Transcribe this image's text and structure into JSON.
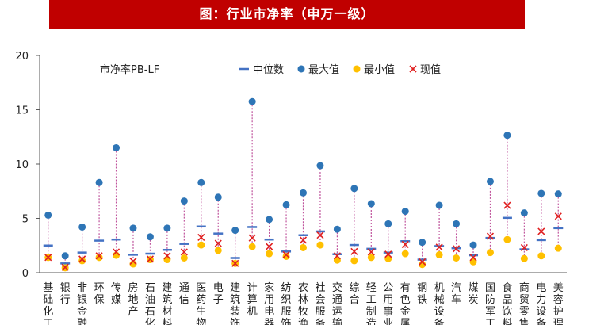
{
  "title": "图：行业市净率（申万一级）",
  "chart_data": {
    "type": "scatter",
    "subtitle": "市净率PB-LF",
    "ylim": [
      0,
      20
    ],
    "yticks": [
      0,
      5,
      10,
      15,
      20
    ],
    "grid": false,
    "legend_position": "top",
    "categories": [
      "基础化工",
      "银行",
      "非银金融",
      "环保",
      "传媒",
      "房地产",
      "石油石化",
      "建筑材料",
      "通信",
      "医药生物",
      "电子",
      "建筑装饰",
      "计算机",
      "家用电器",
      "纺织服饰",
      "农林牧渔",
      "社会服务",
      "交通运输",
      "综合",
      "轻工制造",
      "公用事业",
      "有色金属",
      "钢铁",
      "机械设备",
      "汽车",
      "煤炭",
      "国防军工",
      "食品饮料",
      "商贸零售",
      "电力设备",
      "美容护理"
    ],
    "series": [
      {
        "name": "中位数",
        "color": "#4472c4",
        "marker": "dash",
        "values": [
          2.5,
          0.85,
          1.85,
          2.95,
          3.05,
          1.65,
          1.75,
          2.1,
          2.65,
          4.25,
          3.6,
          1.35,
          4.2,
          3.05,
          1.95,
          3.45,
          3.8,
          1.7,
          2.55,
          2.2,
          1.85,
          2.9,
          1.2,
          2.45,
          2.25,
          1.6,
          3.2,
          5.05,
          2.15,
          3.0,
          4.1
        ]
      },
      {
        "name": "最大值",
        "color": "#2e75b6",
        "marker": "circle",
        "values": [
          5.3,
          1.55,
          4.2,
          8.3,
          11.5,
          4.1,
          3.3,
          4.1,
          6.6,
          8.3,
          6.95,
          3.9,
          15.75,
          4.9,
          6.25,
          7.35,
          9.85,
          4.0,
          7.75,
          6.35,
          4.5,
          5.65,
          2.8,
          6.2,
          4.5,
          2.55,
          8.4,
          12.65,
          5.5,
          7.3,
          7.25
        ]
      },
      {
        "name": "最小值",
        "color": "#ffc000",
        "marker": "circle",
        "values": [
          1.4,
          0.45,
          1.1,
          1.4,
          1.6,
          0.8,
          1.2,
          1.2,
          1.35,
          2.55,
          2.05,
          0.85,
          2.4,
          1.75,
          1.5,
          2.3,
          2.55,
          1.15,
          1.1,
          1.4,
          1.3,
          1.75,
          0.75,
          1.65,
          1.35,
          1.0,
          1.85,
          3.05,
          1.3,
          1.55,
          2.25
        ]
      },
      {
        "name": "现值",
        "color": "#e02020",
        "marker": "x",
        "values": [
          1.4,
          0.5,
          1.25,
          1.55,
          1.9,
          1.05,
          1.25,
          1.55,
          1.9,
          3.25,
          2.7,
          0.85,
          3.2,
          2.4,
          1.65,
          3.0,
          3.45,
          1.55,
          1.95,
          1.9,
          1.7,
          2.6,
          1.0,
          2.35,
          2.2,
          1.4,
          3.35,
          6.2,
          2.3,
          3.8,
          5.2
        ]
      }
    ]
  }
}
